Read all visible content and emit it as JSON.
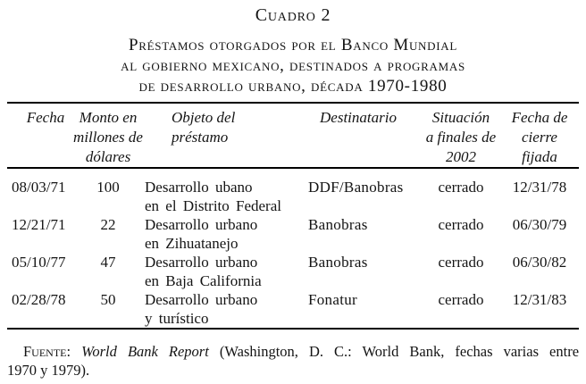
{
  "page": {
    "title": "Cuadro 2",
    "subtitle_lines": [
      "Préstamos otorgados por el Banco Mundial",
      "al gobierno mexicano, destinados a programas",
      "de desarrollo urbano, década 1970-1980"
    ]
  },
  "table": {
    "headers": {
      "fecha": "Fecha",
      "monto_l1": "Monto en",
      "monto_l2": "millones de",
      "monto_l3": "dólares",
      "objeto_l1": "Objeto del",
      "objeto_l2": "préstamo",
      "destinatario": "Destinatario",
      "situacion_l1": "Situación",
      "situacion_l2": "a finales de",
      "situacion_l3": "2002",
      "cierre_l1": "Fecha de",
      "cierre_l2": "cierre",
      "cierre_l3": "fijada"
    },
    "rows": [
      {
        "fecha": "08/03/71",
        "monto": "100",
        "objeto_l1": "Desarrollo ubano",
        "objeto_l2": "en el Distrito Federal",
        "destinatario": "DDF/Banobras",
        "situacion": "cerrado",
        "cierre": "12/31/78"
      },
      {
        "fecha": "12/21/71",
        "monto": "22",
        "objeto_l1": "Desarrollo urbano",
        "objeto_l2": "en Zihuatanejo",
        "destinatario": "Banobras",
        "situacion": "cerrado",
        "cierre": "06/30/79"
      },
      {
        "fecha": "05/10/77",
        "monto": "47",
        "objeto_l1": "Desarrollo urbano",
        "objeto_l2": "en Baja California",
        "destinatario": "Banobras",
        "situacion": "cerrado",
        "cierre": "06/30/82"
      },
      {
        "fecha": "02/28/78",
        "monto": "50",
        "objeto_l1": "Desarrollo urbano",
        "objeto_l2": "y turístico",
        "destinatario": "Fonatur",
        "situacion": "cerrado",
        "cierre": "12/31/83"
      }
    ]
  },
  "footer": {
    "label": "Fuente:",
    "source_italic": "World Bank Report",
    "line1_rest": "(Washington, D. C.: World Bank, fechas varias entre",
    "line2": "1970 y 1979)."
  },
  "colors": {
    "text": "#141414",
    "background": "#ffffff",
    "rule": "#000000"
  }
}
